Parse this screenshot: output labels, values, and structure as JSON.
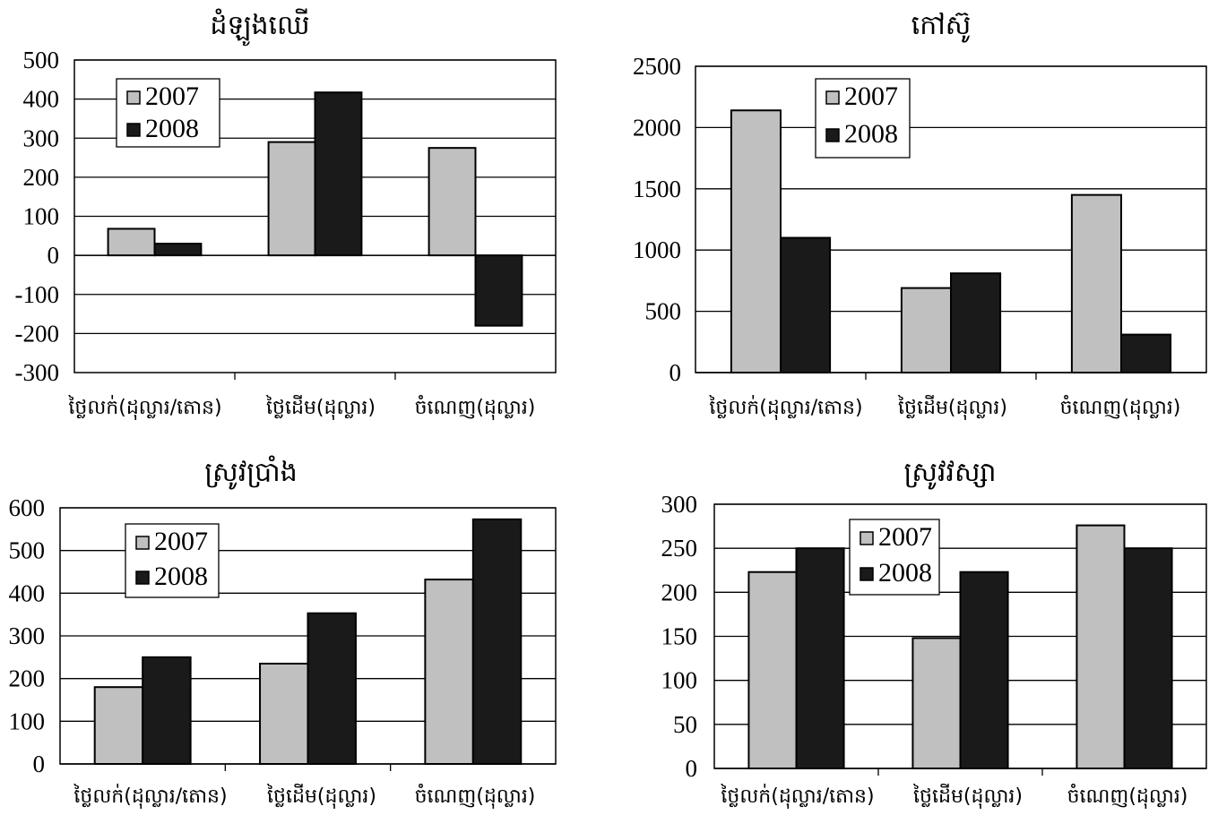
{
  "chart_data": [
    {
      "type": "bar",
      "title": "ដំឡូងឈើ",
      "categories": [
        "ថ្លៃលក់(ដុល្លារ/តោន)",
        "ថ្លៃដើម(ដុល្លារ)",
        "ចំណេញ(ដុល្លារ)"
      ],
      "series": [
        {
          "name": "2007",
          "values": [
            68,
            290,
            275
          ],
          "color": "#c0c0c0"
        },
        {
          "name": "2008",
          "values": [
            30,
            417,
            -180
          ],
          "color": "#1a1a1a"
        }
      ],
      "ylim": [
        -300,
        500
      ],
      "yticks": [
        "500",
        "400",
        "300",
        "200",
        "100",
        "0",
        "-100",
        "-200",
        "-300"
      ],
      "grid": true,
      "legend": "top-left"
    },
    {
      "type": "bar",
      "title": "កៅស៊ូ",
      "categories": [
        "ថ្លៃលក់(ដុល្លារ/តោន)",
        "ថ្លៃដើម(ដុល្លារ)",
        "ចំណេញ(ដុល្លារ)"
      ],
      "series": [
        {
          "name": "2007",
          "values": [
            2140,
            690,
            1450
          ],
          "color": "#c0c0c0"
        },
        {
          "name": "2008",
          "values": [
            1100,
            810,
            310
          ],
          "color": "#1a1a1a"
        }
      ],
      "ylim": [
        0,
        2500
      ],
      "yticks": [
        "2500",
        "2000",
        "1500",
        "1000",
        "500",
        "0"
      ],
      "grid": true,
      "legend": "top-center"
    },
    {
      "type": "bar",
      "title": "ស្រូវប្រាំង",
      "categories": [
        "ថ្លៃលក់(ដុល្លារ/តោន)",
        "ថ្លៃដើម(ដុល្លារ)",
        "ចំណេញ(ដុល្លារ)"
      ],
      "series": [
        {
          "name": "2007",
          "values": [
            180,
            235,
            432
          ],
          "color": "#c0c0c0"
        },
        {
          "name": "2008",
          "values": [
            250,
            353,
            573
          ],
          "color": "#1a1a1a"
        }
      ],
      "ylim": [
        0,
        600
      ],
      "yticks": [
        "600",
        "500",
        "400",
        "300",
        "200",
        "100",
        "0"
      ],
      "grid": true,
      "legend": "top-left"
    },
    {
      "type": "bar",
      "title": "ស្រូវវស្សា",
      "categories": [
        "ថ្លៃលក់(ដុល្លារ/តោន)",
        "ថ្លៃដើម(ដុល្លារ)",
        "ចំណេញ(ដុល្លារ)"
      ],
      "series": [
        {
          "name": "2007",
          "values": [
            223,
            148,
            276
          ],
          "color": "#c0c0c0"
        },
        {
          "name": "2008",
          "values": [
            250,
            223,
            250
          ],
          "color": "#1a1a1a"
        }
      ],
      "ylim": [
        0,
        300
      ],
      "yticks": [
        "300",
        "250",
        "200",
        "150",
        "100",
        "50",
        "0"
      ],
      "grid": true,
      "legend": "top-left"
    }
  ]
}
